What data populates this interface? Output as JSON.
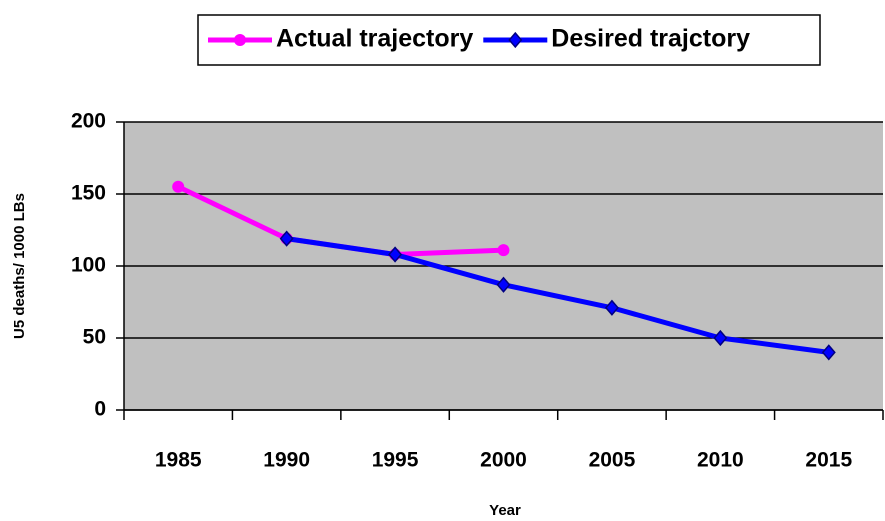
{
  "chart_data": {
    "type": "line",
    "categories": [
      "1985",
      "1990",
      "1995",
      "2000",
      "2005",
      "2010",
      "2015"
    ],
    "series": [
      {
        "name": "Actual trajectory",
        "color": "#ff00ff",
        "marker": "circle",
        "values": [
          155,
          119,
          108,
          111,
          null,
          null,
          null
        ]
      },
      {
        "name": "Desired trajctory",
        "color": "#0000ff",
        "marker": "diamond",
        "values": [
          null,
          119,
          108,
          87,
          71,
          50,
          40
        ]
      }
    ],
    "ylim": [
      0,
      200
    ],
    "yticks": [
      0,
      50,
      100,
      150,
      200
    ],
    "grid": true,
    "y_label": "U5 deaths/ 1000 LBs",
    "x_label": "Year",
    "plot_background": "#c0c0c0",
    "legend": "top"
  }
}
